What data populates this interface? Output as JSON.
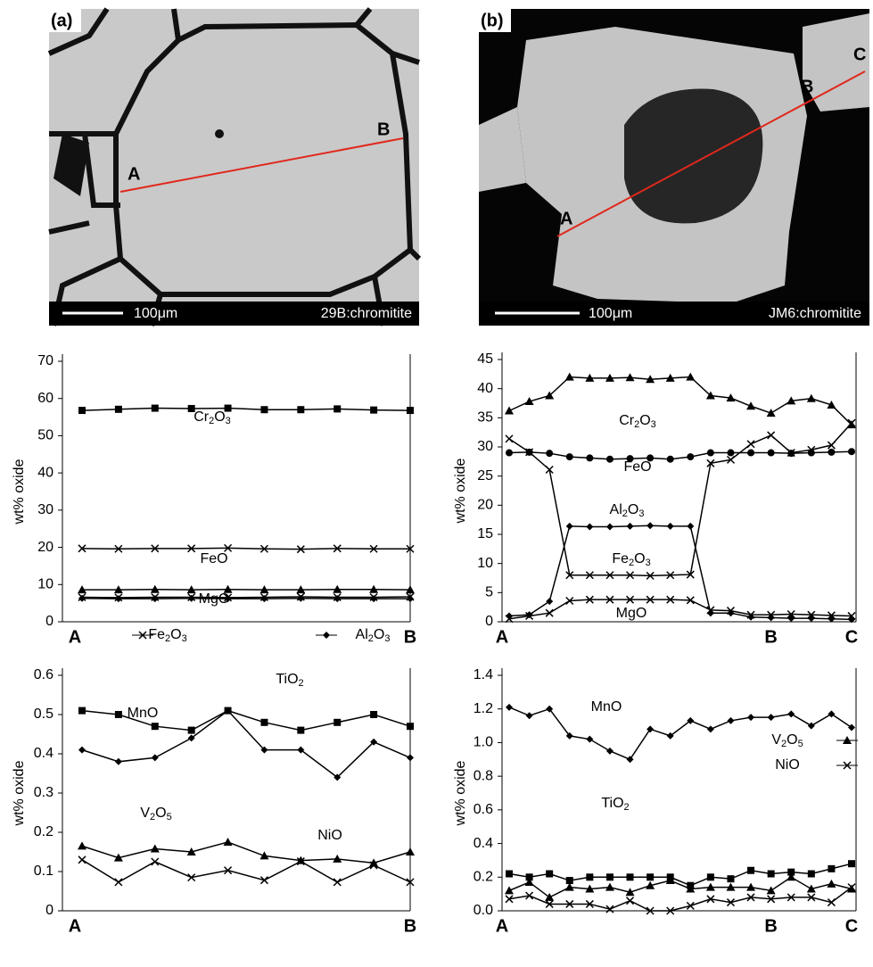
{
  "images": [
    {
      "label": "(a)",
      "points": [
        "A",
        "B"
      ],
      "scale": "100μm",
      "sample": "29B:chromitite"
    },
    {
      "label": "(b)",
      "points": [
        "A",
        "B",
        "C"
      ],
      "scale": "100μm",
      "sample": "JM6:chromitite"
    }
  ],
  "chart_data": [
    {
      "type": "line",
      "ylabel": "wt% oxide",
      "categories": [
        "A",
        null,
        null,
        null,
        null,
        null,
        null,
        null,
        null,
        "B"
      ],
      "ylim": [
        0,
        70
      ],
      "yticks": [
        0,
        10,
        20,
        30,
        40,
        50,
        60,
        70
      ],
      "series": [
        {
          "name": "Cr2O3",
          "color": "#000",
          "marker": "square",
          "values": [
            56.8,
            57.1,
            57.4,
            57.3,
            57.4,
            57.0,
            57.0,
            57.2,
            56.9,
            56.8
          ]
        },
        {
          "name": "FeO",
          "color": "#000",
          "marker": "x",
          "values": [
            19.7,
            19.6,
            19.7,
            19.7,
            19.8,
            19.6,
            19.5,
            19.7,
            19.6,
            19.6
          ]
        },
        {
          "name": "MgO",
          "color": "#000",
          "marker": "triangle",
          "values": [
            8.6,
            8.6,
            8.7,
            8.6,
            8.7,
            8.6,
            8.6,
            8.7,
            8.7,
            8.6
          ]
        },
        {
          "name": "Fe2O3",
          "color": "#000",
          "marker": "x",
          "values": [
            6.6,
            6.5,
            6.6,
            6.6,
            6.5,
            6.6,
            6.7,
            6.6,
            6.6,
            6.7
          ]
        },
        {
          "name": "Al2O3",
          "color": "#000",
          "marker": "diamond",
          "values": [
            6.3,
            6.2,
            6.2,
            6.3,
            6.2,
            6.2,
            6.3,
            6.2,
            6.2,
            6.2
          ]
        }
      ]
    },
    {
      "type": "line",
      "ylabel": "wt% oxide",
      "categories": [
        "A",
        null,
        null,
        null,
        null,
        null,
        null,
        null,
        null,
        null,
        null,
        null,
        null,
        "B",
        null,
        null,
        null,
        "C"
      ],
      "ylim": [
        0,
        45
      ],
      "yticks": [
        0,
        5,
        10,
        15,
        20,
        25,
        30,
        35,
        40,
        45
      ],
      "series": [
        {
          "name": "Cr2O3",
          "color": "#000",
          "marker": "triangle",
          "values": [
            36.2,
            37.8,
            38.8,
            42.0,
            41.8,
            41.8,
            41.9,
            41.6,
            41.8,
            42.0,
            38.8,
            38.4,
            37.0,
            35.8,
            37.9,
            38.3,
            37.2,
            33.8
          ]
        },
        {
          "name": "FeO",
          "color": "#000",
          "marker": "circle",
          "values": [
            29.0,
            29.1,
            28.9,
            28.3,
            28.1,
            27.9,
            28.0,
            28.1,
            27.9,
            28.3,
            29.0,
            29.0,
            29.0,
            29.0,
            28.9,
            29.0,
            29.1,
            29.2
          ]
        },
        {
          "name": "Al2O3",
          "color": "#000",
          "marker": "diamond",
          "values": [
            1.0,
            1.2,
            3.5,
            16.4,
            16.3,
            16.3,
            16.4,
            16.5,
            16.4,
            16.4,
            1.5,
            1.5,
            0.8,
            0.7,
            0.6,
            0.6,
            0.5,
            0.4
          ]
        },
        {
          "name": "Fe2O3",
          "color": "#000",
          "marker": "x",
          "values": [
            31.4,
            29.1,
            26.1,
            8.0,
            8.0,
            8.0,
            8.0,
            7.9,
            8.0,
            8.1,
            27.2,
            27.8,
            30.5,
            32.0,
            29.0,
            29.5,
            30.3,
            34.1
          ]
        },
        {
          "name": "MgO",
          "color": "#000",
          "marker": "x",
          "values": [
            0.5,
            1.0,
            1.5,
            3.6,
            3.8,
            3.8,
            3.8,
            3.8,
            3.8,
            3.7,
            2.0,
            1.9,
            1.2,
            1.2,
            1.3,
            1.2,
            1.1,
            1.0
          ]
        }
      ]
    },
    {
      "type": "line",
      "ylabel": "wt% oxide",
      "categories": [
        "A",
        null,
        null,
        null,
        null,
        null,
        null,
        null,
        null,
        "B"
      ],
      "ylim": [
        0,
        0.6
      ],
      "yticks": [
        0,
        0.1,
        0.2,
        0.3,
        0.4,
        0.5,
        0.6
      ],
      "series": [
        {
          "name": "TiO2",
          "color": "#000",
          "marker": "square",
          "values": [
            0.51,
            0.5,
            0.47,
            0.46,
            0.51,
            0.48,
            0.46,
            0.48,
            0.5,
            0.47
          ]
        },
        {
          "name": "MnO",
          "color": "#000",
          "marker": "diamond",
          "values": [
            0.41,
            0.38,
            0.39,
            0.44,
            0.51,
            0.41,
            0.41,
            0.34,
            0.43,
            0.39
          ]
        },
        {
          "name": "V2O5",
          "color": "#000",
          "marker": "triangle",
          "values": [
            0.165,
            0.135,
            0.158,
            0.15,
            0.175,
            0.14,
            0.128,
            0.132,
            0.122,
            0.15
          ]
        },
        {
          "name": "NiO",
          "color": "#000",
          "marker": "x",
          "values": [
            0.13,
            0.073,
            0.125,
            0.085,
            0.103,
            0.078,
            0.126,
            0.073,
            0.116,
            0.073
          ]
        }
      ]
    },
    {
      "type": "line",
      "ylabel": "wt% oxide",
      "categories": [
        "A",
        null,
        null,
        null,
        null,
        null,
        null,
        null,
        null,
        null,
        null,
        null,
        null,
        "B",
        null,
        null,
        null,
        "C"
      ],
      "ylim": [
        0,
        1.4
      ],
      "yticks": [
        {
          "value": 0,
          "label": "0.0"
        },
        0.2,
        0.4,
        0.6,
        0.8,
        {
          "value": 1,
          "label": "1.0"
        },
        1.2,
        1.4
      ],
      "series": [
        {
          "name": "MnO",
          "color": "#000",
          "marker": "diamond",
          "values": [
            1.21,
            1.16,
            1.2,
            1.04,
            1.02,
            0.95,
            0.9,
            1.08,
            1.04,
            1.13,
            1.08,
            1.13,
            1.15,
            1.15,
            1.17,
            1.1,
            1.17,
            1.09
          ]
        },
        {
          "name": "TiO2",
          "color": "#000",
          "marker": "square",
          "values": [
            0.22,
            0.2,
            0.22,
            0.18,
            0.2,
            0.2,
            0.2,
            0.2,
            0.2,
            0.15,
            0.2,
            0.19,
            0.24,
            0.22,
            0.23,
            0.22,
            0.25,
            0.28
          ]
        },
        {
          "name": "V2O5",
          "color": "#000",
          "marker": "triangle",
          "values": [
            0.12,
            0.17,
            0.08,
            0.14,
            0.13,
            0.14,
            0.11,
            0.15,
            0.18,
            0.13,
            0.14,
            0.14,
            0.14,
            0.12,
            0.2,
            0.13,
            0.16,
            0.13
          ]
        },
        {
          "name": "NiO",
          "color": "#000",
          "marker": "x",
          "values": [
            0.07,
            0.09,
            0.04,
            0.04,
            0.04,
            0.01,
            0.06,
            0,
            0,
            0.03,
            0.07,
            0.05,
            0.08,
            0.07,
            0.08,
            0.08,
            0.05,
            0.14
          ]
        }
      ]
    }
  ]
}
